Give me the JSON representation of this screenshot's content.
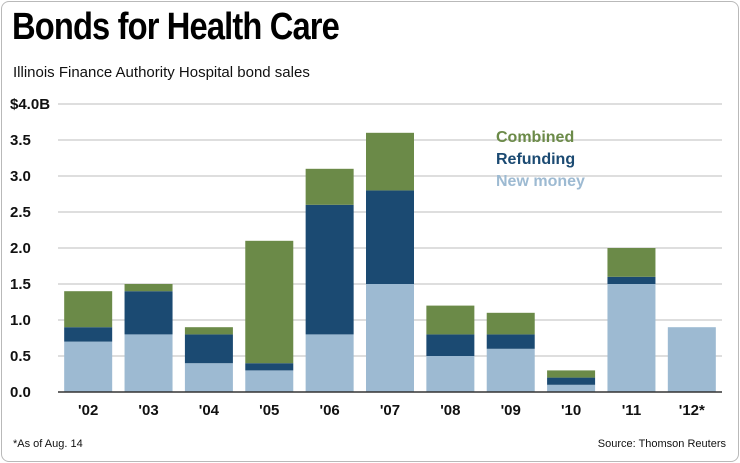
{
  "title": "Bonds for Health Care",
  "subtitle": "Illinois Finance Authority Hospital bond sales",
  "footnote": "*As of Aug. 14",
  "source": "Source: Thomson Reuters",
  "colors": {
    "combined": "#6b8a48",
    "refunding": "#1b4a72",
    "new_money": "#9dbad2",
    "grid": "#bdbdbd",
    "axis": "#333333"
  },
  "chart_data": {
    "type": "bar",
    "stacked": true,
    "categories": [
      "'02",
      "'03",
      "'04",
      "'05",
      "'06",
      "'07",
      "'08",
      "'09",
      "'10",
      "'11",
      "'12*"
    ],
    "series": [
      {
        "name": "New money",
        "key": "new_money",
        "values": [
          0.7,
          0.8,
          0.4,
          0.3,
          0.8,
          1.5,
          0.5,
          0.6,
          0.1,
          1.5,
          0.9
        ]
      },
      {
        "name": "Refunding",
        "key": "refunding",
        "values": [
          0.2,
          0.6,
          0.4,
          0.1,
          1.8,
          1.3,
          0.3,
          0.2,
          0.1,
          0.1,
          0.0
        ]
      },
      {
        "name": "Combined",
        "key": "combined",
        "values": [
          0.5,
          0.1,
          0.1,
          1.7,
          0.5,
          0.8,
          0.4,
          0.3,
          0.1,
          0.4,
          0.0
        ]
      }
    ],
    "legend": [
      "Combined",
      "Refunding",
      "New money"
    ],
    "ytick_labels": [
      "0.0",
      "0.5",
      "1.0",
      "1.5",
      "2.0",
      "2.5",
      "3.0",
      "3.5",
      "$4.0B"
    ],
    "ylim": [
      0,
      4.0
    ],
    "ylabel": "",
    "xlabel": "",
    "grid": true
  }
}
